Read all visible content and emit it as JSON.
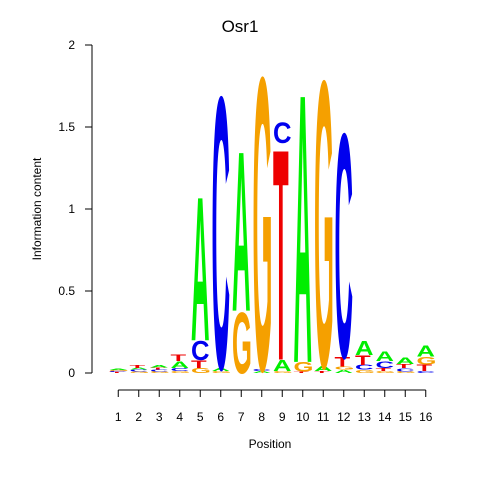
{
  "chart_data": {
    "type": "sequence-logo",
    "title": "Osr1",
    "xlabel": "Position",
    "ylabel": "Information content",
    "ylim": [
      0,
      2
    ],
    "y_ticks": [
      "0",
      "0.5",
      "1",
      "1.5",
      "2"
    ],
    "x_ticks": [
      "1",
      "2",
      "3",
      "4",
      "5",
      "6",
      "7",
      "8",
      "9",
      "10",
      "11",
      "12",
      "13",
      "14",
      "15",
      "16"
    ],
    "colors": {
      "A": "#00ee00",
      "C": "#0000ee",
      "G": "#f5a000",
      "T": "#ee0000"
    },
    "positions": [
      {
        "pos": 1,
        "letters": [
          [
            "T",
            0.006
          ],
          [
            "C",
            0.006
          ],
          [
            "G",
            0.006
          ],
          [
            "A",
            0.006
          ]
        ]
      },
      {
        "pos": 2,
        "letters": [
          [
            "G",
            0.008
          ],
          [
            "C",
            0.012
          ],
          [
            "A",
            0.012
          ],
          [
            "T",
            0.018
          ]
        ]
      },
      {
        "pos": 3,
        "letters": [
          [
            "G",
            0.01
          ],
          [
            "C",
            0.012
          ],
          [
            "T",
            0.012
          ],
          [
            "A",
            0.016
          ]
        ]
      },
      {
        "pos": 4,
        "letters": [
          [
            "G",
            0.012
          ],
          [
            "C",
            0.02
          ],
          [
            "A",
            0.04
          ],
          [
            "T",
            0.04
          ]
        ]
      },
      {
        "pos": 5,
        "letters": [
          [
            "G",
            0.03
          ],
          [
            "T",
            0.05
          ],
          [
            "C",
            0.12
          ],
          [
            "A",
            0.9
          ]
        ]
      },
      {
        "pos": 6,
        "letters": [
          [
            "G",
            0.012
          ],
          [
            "A",
            0.02
          ],
          [
            "C",
            1.7
          ]
        ]
      },
      {
        "pos": 7,
        "letters": [
          [
            "G",
            0.38
          ],
          [
            "A",
            1.0
          ]
        ]
      },
      {
        "pos": 8,
        "letters": [
          [
            "A",
            0.012
          ],
          [
            "C",
            0.012
          ],
          [
            "G",
            1.83
          ]
        ]
      },
      {
        "pos": 9,
        "letters": [
          [
            "G",
            0.012
          ],
          [
            "A",
            0.07
          ],
          [
            "T",
            1.32
          ],
          [
            "C",
            0.13
          ]
        ]
      },
      {
        "pos": 10,
        "letters": [
          [
            "T",
            0.008
          ],
          [
            "G",
            0.06
          ],
          [
            "A",
            1.68
          ]
        ]
      },
      {
        "pos": 11,
        "letters": [
          [
            "T",
            0.012
          ],
          [
            "A",
            0.03
          ],
          [
            "G",
            1.79
          ]
        ]
      },
      {
        "pos": 12,
        "letters": [
          [
            "A",
            0.02
          ],
          [
            "G",
            0.02
          ],
          [
            "T",
            0.06
          ],
          [
            "C",
            1.4
          ]
        ]
      },
      {
        "pos": 13,
        "letters": [
          [
            "G",
            0.02
          ],
          [
            "C",
            0.03
          ],
          [
            "T",
            0.06
          ],
          [
            "A",
            0.09
          ]
        ]
      },
      {
        "pos": 14,
        "letters": [
          [
            "G",
            0.012
          ],
          [
            "T",
            0.02
          ],
          [
            "C",
            0.04
          ],
          [
            "A",
            0.06
          ]
        ]
      },
      {
        "pos": 15,
        "letters": [
          [
            "G",
            0.01
          ],
          [
            "C",
            0.02
          ],
          [
            "T",
            0.025
          ],
          [
            "A",
            0.04
          ]
        ]
      },
      {
        "pos": 16,
        "letters": [
          [
            "C",
            0.012
          ],
          [
            "T",
            0.04
          ],
          [
            "G",
            0.05
          ],
          [
            "A",
            0.07
          ]
        ]
      }
    ]
  }
}
